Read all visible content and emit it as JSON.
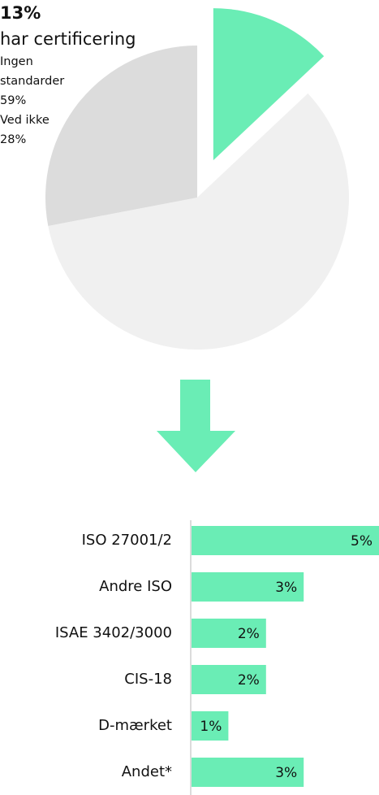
{
  "chart_data": [
    {
      "type": "pie",
      "categories": [
        "har certificering",
        "Ingen standarder",
        "Ved ikke"
      ],
      "values": [
        13,
        59,
        28
      ],
      "value_labels": [
        "13%",
        "59%",
        "28%"
      ],
      "colors": [
        "#6aedb5",
        "#f0f0f0",
        "#dcdcdc"
      ],
      "explode": [
        true,
        false,
        false
      ]
    },
    {
      "type": "hbar",
      "categories": [
        "ISO 27001/2",
        "Andre ISO",
        "ISAE 3402/3000",
        "CIS-18",
        "D-mærket",
        "Andet*"
      ],
      "values": [
        5,
        3,
        2,
        2,
        1,
        3
      ],
      "value_labels": [
        "5%",
        "3%",
        "2%",
        "2%",
        "1%",
        "3%"
      ],
      "color": "#6aedb5",
      "xlim": [
        0,
        5
      ]
    }
  ]
}
